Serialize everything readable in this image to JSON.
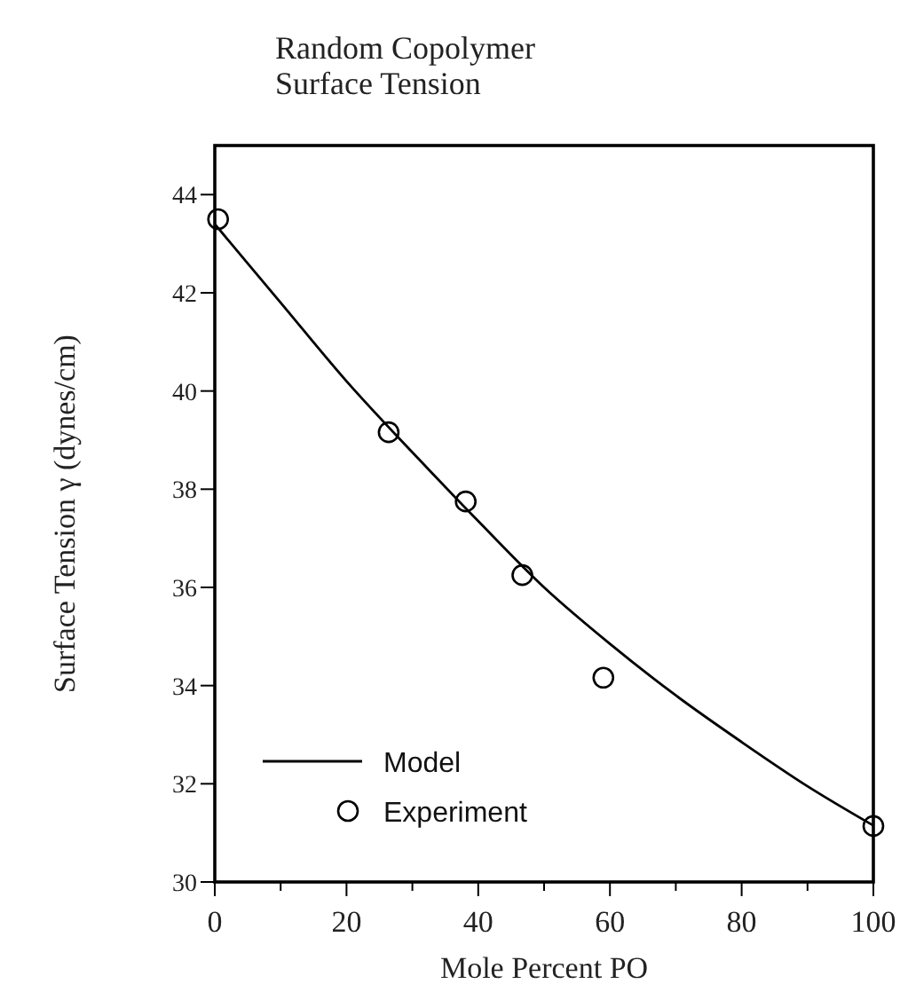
{
  "chart_data": {
    "type": "line",
    "title": "Random Copolymer\nSurface Tension",
    "xlabel": "Mole Percent PO",
    "ylabel": "Surface Tension γ (dynes/cm)",
    "xlim": [
      0,
      100
    ],
    "ylim": [
      30,
      45
    ],
    "xticks": [
      0,
      {
        "value": 10,
        "label": null
      },
      20,
      {
        "value": 30,
        "label": null
      },
      40,
      {
        "value": 50,
        "label": null
      },
      60,
      {
        "value": 70,
        "label": null
      },
      80,
      {
        "value": 90,
        "label": null
      },
      100
    ],
    "yticks": [
      30,
      32,
      34,
      36,
      38,
      40,
      42,
      44
    ],
    "grid": false,
    "legend": "bottom left",
    "series": [
      {
        "name": "Model",
        "color": "#000000",
        "marker": "none",
        "line_style": "solid",
        "x": [
          0,
          10,
          20,
          30,
          40,
          50,
          60,
          70,
          80,
          90,
          100
        ],
        "values": [
          43.4,
          41.8,
          40.2,
          38.75,
          37.35,
          36.0,
          34.85,
          33.8,
          32.85,
          31.95,
          31.15
        ]
      },
      {
        "name": "Experiment",
        "type": "scatter",
        "color": "#000000",
        "marker": "circle",
        "x": [
          0.5,
          26.4,
          38.1,
          46.7,
          59.0,
          100
        ],
        "values": [
          43.5,
          39.16,
          37.75,
          36.25,
          34.16,
          31.14
        ]
      }
    ]
  }
}
